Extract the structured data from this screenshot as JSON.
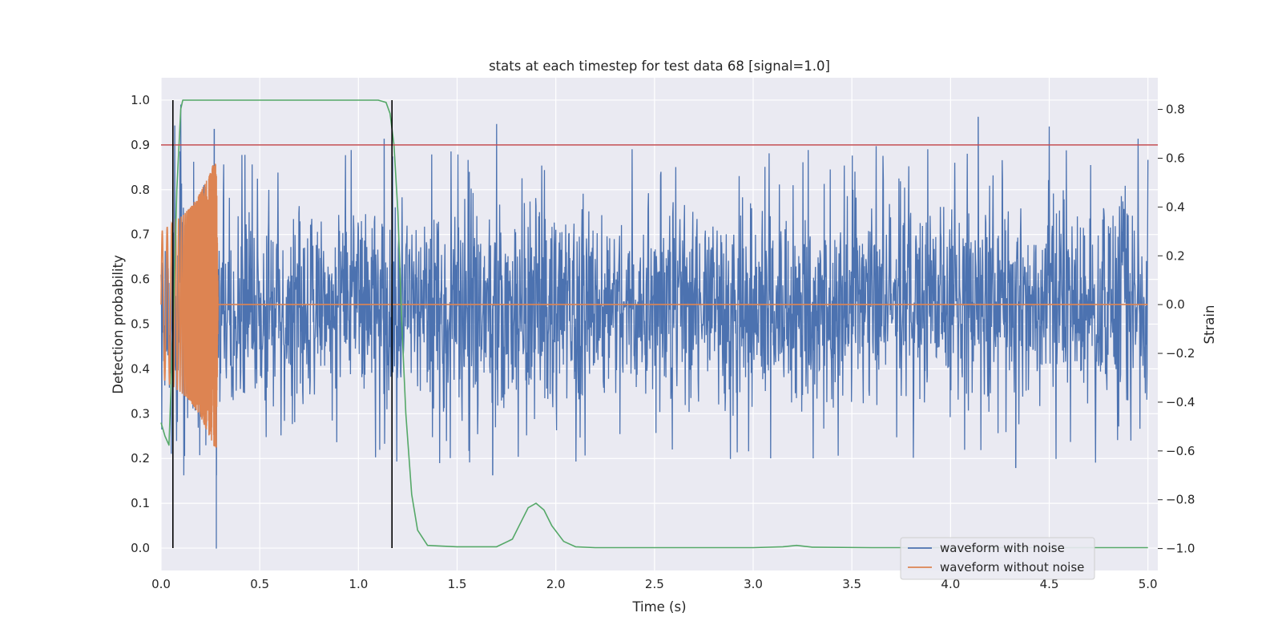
{
  "chart_data": {
    "type": "line",
    "title": "stats at each timestep for test data 68 [signal=1.0]",
    "xlabel": "Time (s)",
    "ylabel_left": "Detection probability",
    "ylabel_right": "Strain",
    "xlim": [
      0.0,
      5.05
    ],
    "ylim_left": [
      -0.05,
      1.05
    ],
    "ylim_right": [
      -1.09,
      0.93
    ],
    "x_ticks": [
      "0.0",
      "0.5",
      "1.0",
      "1.5",
      "2.0",
      "2.5",
      "3.0",
      "3.5",
      "4.0",
      "4.5",
      "5.0"
    ],
    "left_ticks": [
      "0.0",
      "0.1",
      "0.2",
      "0.3",
      "0.4",
      "0.5",
      "0.6",
      "0.7",
      "0.8",
      "0.9",
      "1.0"
    ],
    "right_ticks": [
      "−1.0",
      "−0.8",
      "−0.6",
      "−0.4",
      "−0.2",
      "0.0",
      "0.2",
      "0.4",
      "0.6",
      "0.8"
    ],
    "grid": true,
    "legend_position": "lower-right",
    "threshold": {
      "value": 0.9,
      "color": "#c44e52"
    },
    "vlines": [
      0.06,
      1.17
    ],
    "vline_color": "#000000",
    "series": [
      {
        "name": "waveform with noise",
        "axis": "right",
        "color": "#4c72b0",
        "description": "noisy strain, roughly uniform noise between about -0.6 and 0.75 across 0-5 s with signal embedded 0-0.28 s",
        "noise_range": [
          -0.6,
          0.75
        ],
        "notable_peaks": [
          [
            0.1,
            0.82
          ],
          [
            0.27,
            0.72
          ],
          [
            0.28,
            -1.0
          ],
          [
            1.13,
            0.68
          ],
          [
            1.7,
            0.74
          ],
          [
            1.68,
            -0.7
          ],
          [
            2.7,
            0.03
          ],
          [
            4.14,
            0.77
          ],
          [
            4.33,
            -0.67
          ],
          [
            4.5,
            0.73
          ],
          [
            4.95,
            0.68
          ]
        ]
      },
      {
        "name": "waveform without noise",
        "axis": "right",
        "color": "#dd8452",
        "description": "chirp signal growing in amplitude from 0 to ~0.28 s then zero",
        "x": [
          0.0,
          0.05,
          0.1,
          0.15,
          0.2,
          0.25,
          0.28,
          0.29,
          5.0
        ],
        "envelope": [
          0.3,
          0.33,
          0.36,
          0.4,
          0.46,
          0.55,
          0.6,
          0.0,
          0.0
        ]
      },
      {
        "name": "",
        "axis": "left",
        "color": "#55a868",
        "x": [
          0.0,
          0.02,
          0.04,
          0.06,
          0.08,
          0.1,
          0.11,
          0.3,
          0.6,
          0.9,
          1.1,
          1.14,
          1.16,
          1.18,
          1.2,
          1.22,
          1.24,
          1.27,
          1.3,
          1.35,
          1.4,
          1.5,
          1.7,
          1.78,
          1.82,
          1.86,
          1.9,
          1.94,
          1.98,
          2.04,
          2.1,
          2.2,
          3.0,
          3.15,
          3.22,
          3.3,
          3.6,
          4.0,
          4.5,
          5.0
        ],
        "y": [
          0.28,
          0.25,
          0.23,
          0.48,
          0.8,
          0.98,
          1.0,
          1.0,
          1.0,
          1.0,
          1.0,
          0.995,
          0.97,
          0.9,
          0.75,
          0.5,
          0.3,
          0.12,
          0.04,
          0.006,
          0.005,
          0.003,
          0.003,
          0.02,
          0.055,
          0.09,
          0.1,
          0.085,
          0.05,
          0.015,
          0.003,
          0.001,
          0.001,
          0.003,
          0.006,
          0.002,
          0.001,
          0.001,
          0.001,
          0.001
        ]
      }
    ]
  }
}
